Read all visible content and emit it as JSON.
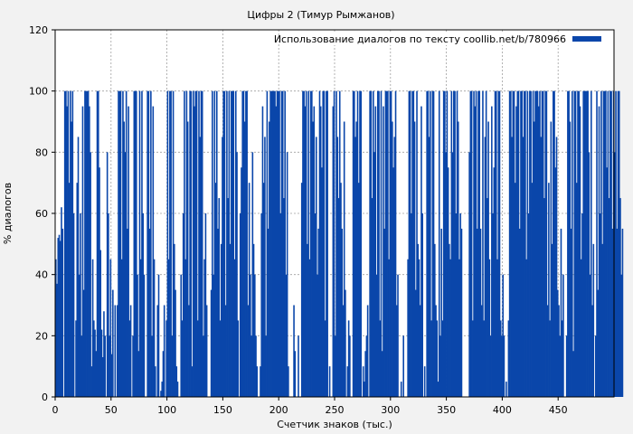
{
  "chart_data": {
    "type": "bar",
    "title": "Цифры 2 (Тимур Рымжанов)",
    "xlabel": "Счетчик знаков (тыс.)",
    "ylabel": "% диалогов",
    "xlim": [
      0,
      500
    ],
    "ylim": [
      0,
      120
    ],
    "x_ticks": [
      0,
      50,
      100,
      150,
      200,
      250,
      300,
      350,
      400,
      450
    ],
    "y_ticks": [
      0,
      20,
      40,
      60,
      80,
      100,
      120
    ],
    "grid": true,
    "legend_position": "top-right",
    "bar_color": "#0a46aa",
    "series": [
      {
        "name": "Использование диалогов по тексту coollib.net/b/780966",
        "x_start": 0.5,
        "x_step": 1,
        "values": [
          45,
          37,
          52,
          53,
          51,
          62,
          55,
          0,
          100,
          100,
          95,
          100,
          70,
          100,
          90,
          100,
          60,
          0,
          25,
          70,
          85,
          40,
          60,
          20,
          95,
          35,
          100,
          100,
          100,
          100,
          95,
          80,
          10,
          45,
          25,
          22,
          15,
          100,
          100,
          75,
          48,
          22,
          13,
          28,
          20,
          0,
          80,
          60,
          20,
          45,
          14,
          35,
          0,
          30,
          0,
          30,
          100,
          100,
          100,
          45,
          100,
          90,
          80,
          100,
          55,
          95,
          25,
          30,
          0,
          20,
          100,
          100,
          100,
          40,
          15,
          100,
          45,
          100,
          60,
          40,
          0,
          0,
          100,
          100,
          55,
          100,
          20,
          95,
          45,
          10,
          0,
          30,
          40,
          0,
          2,
          5,
          15,
          30,
          0,
          25,
          100,
          45,
          100,
          100,
          20,
          100,
          50,
          35,
          10,
          5,
          0,
          0,
          40,
          25,
          60,
          100,
          45,
          100,
          90,
          30,
          100,
          100,
          10,
          100,
          95,
          100,
          100,
          25,
          100,
          85,
          100,
          100,
          20,
          45,
          60,
          30,
          0,
          0,
          0,
          35,
          100,
          40,
          100,
          70,
          100,
          55,
          65,
          25,
          50,
          85,
          100,
          100,
          30,
          100,
          65,
          100,
          50,
          100,
          100,
          100,
          45,
          100,
          80,
          25,
          0,
          60,
          75,
          100,
          100,
          90,
          100,
          100,
          30,
          70,
          40,
          20,
          80,
          50,
          40,
          20,
          10,
          0,
          0,
          10,
          60,
          95,
          70,
          85,
          20,
          100,
          55,
          90,
          100,
          100,
          100,
          100,
          100,
          95,
          100,
          100,
          100,
          60,
          100,
          100,
          65,
          100,
          40,
          80,
          10,
          0,
          0,
          0,
          0,
          30,
          15,
          0,
          0,
          20,
          0,
          0,
          70,
          100,
          100,
          95,
          100,
          50,
          100,
          45,
          100,
          100,
          90,
          95,
          60,
          85,
          40,
          55,
          100,
          95,
          75,
          100,
          100,
          25,
          100,
          100,
          0,
          10,
          0,
          0,
          95,
          100,
          20,
          100,
          85,
          65,
          100,
          70,
          55,
          30,
          90,
          35,
          0,
          10,
          25,
          20,
          0,
          0,
          100,
          100,
          85,
          90,
          100,
          70,
          100,
          100,
          0,
          10,
          5,
          15,
          20,
          30,
          0,
          100,
          100,
          65,
          100,
          80,
          95,
          40,
          100,
          100,
          25,
          100,
          15,
          95,
          55,
          100,
          100,
          100,
          45,
          100,
          100,
          90,
          75,
          85,
          100,
          30,
          40,
          0,
          0,
          5,
          0,
          20,
          0,
          0,
          0,
          45,
          100,
          100,
          60,
          100,
          100,
          90,
          35,
          100,
          50,
          45,
          30,
          95,
          60,
          0,
          10,
          0,
          100,
          100,
          85,
          100,
          25,
          100,
          100,
          50,
          30,
          25,
          5,
          100,
          20,
          55,
          25,
          100,
          100,
          80,
          100,
          75,
          50,
          45,
          100,
          80,
          100,
          100,
          60,
          100,
          90,
          45,
          60,
          55,
          0,
          0,
          0,
          0,
          0,
          0,
          80,
          100,
          100,
          25,
          100,
          95,
          100,
          55,
          100,
          100,
          55,
          30,
          100,
          25,
          85,
          100,
          65,
          90,
          45,
          20,
          95,
          60,
          75,
          100,
          100,
          45,
          100,
          100,
          25,
          20,
          40,
          20,
          0,
          5,
          0,
          25,
          100,
          100,
          85,
          100,
          100,
          70,
          95,
          100,
          100,
          55,
          100,
          100,
          85,
          100,
          100,
          45,
          100,
          60,
          100,
          100,
          70,
          100,
          90,
          100,
          100,
          100,
          95,
          100,
          85,
          100,
          100,
          65,
          100,
          100,
          30,
          70,
          25,
          90,
          50,
          100,
          100,
          75,
          85,
          35,
          30,
          20,
          55,
          25,
          40,
          0,
          0,
          20,
          100,
          100,
          90,
          55,
          100,
          15,
          100,
          100,
          70,
          100,
          100,
          95,
          45,
          60,
          100,
          100,
          100,
          100,
          100,
          80,
          40,
          100,
          30,
          50,
          0,
          20,
          100,
          35,
          95,
          60,
          100,
          50,
          100,
          100,
          100,
          75,
          100,
          65,
          100,
          100,
          55,
          100,
          80,
          100,
          55,
          100,
          100,
          65,
          40,
          55
        ]
      }
    ]
  }
}
